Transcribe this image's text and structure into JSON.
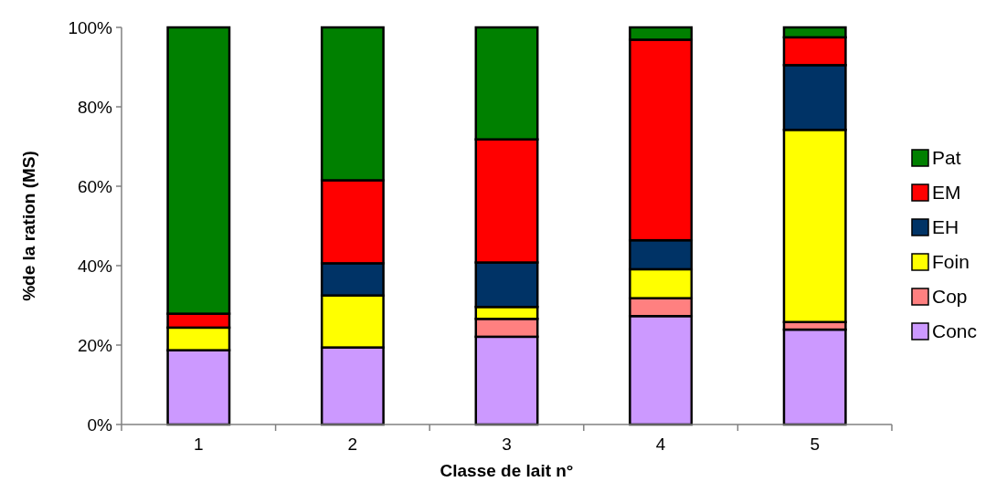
{
  "chart_data": {
    "type": "bar",
    "stacked": true,
    "xlabel": "Classe de lait n°",
    "ylabel": "%de la ration (MS)",
    "categories": [
      "1",
      "2",
      "3",
      "4",
      "5"
    ],
    "ylim": [
      0,
      100
    ],
    "yticks": [
      {
        "value": 0,
        "label": "0%"
      },
      {
        "value": 20,
        "label": "20%"
      },
      {
        "value": 40,
        "label": "40%"
      },
      {
        "value": 60,
        "label": "60%"
      },
      {
        "value": 80,
        "label": "80%"
      },
      {
        "value": 100,
        "label": "100%"
      }
    ],
    "legend": "right",
    "grid": false,
    "series": [
      {
        "name": "Conc",
        "color": "#cc99ff",
        "values": [
          18.7,
          19.4,
          22.1,
          27.3,
          23.9
        ]
      },
      {
        "name": "Cop",
        "color": "#ff8080",
        "values": [
          0,
          0,
          4.5,
          4.5,
          1.9
        ]
      },
      {
        "name": "Foin",
        "color": "#ffff00",
        "values": [
          5.7,
          13.1,
          3.0,
          7.3,
          48.4
        ]
      },
      {
        "name": "EH",
        "color": "#003366",
        "values": [
          0,
          8.1,
          11.2,
          7.3,
          16.3
        ]
      },
      {
        "name": "EM",
        "color": "#ff0000",
        "values": [
          3.5,
          20.9,
          31.0,
          50.5,
          7.0
        ]
      },
      {
        "name": "Pat",
        "color": "#008000",
        "values": [
          72.1,
          38.5,
          28.2,
          3.1,
          2.5
        ]
      }
    ]
  }
}
